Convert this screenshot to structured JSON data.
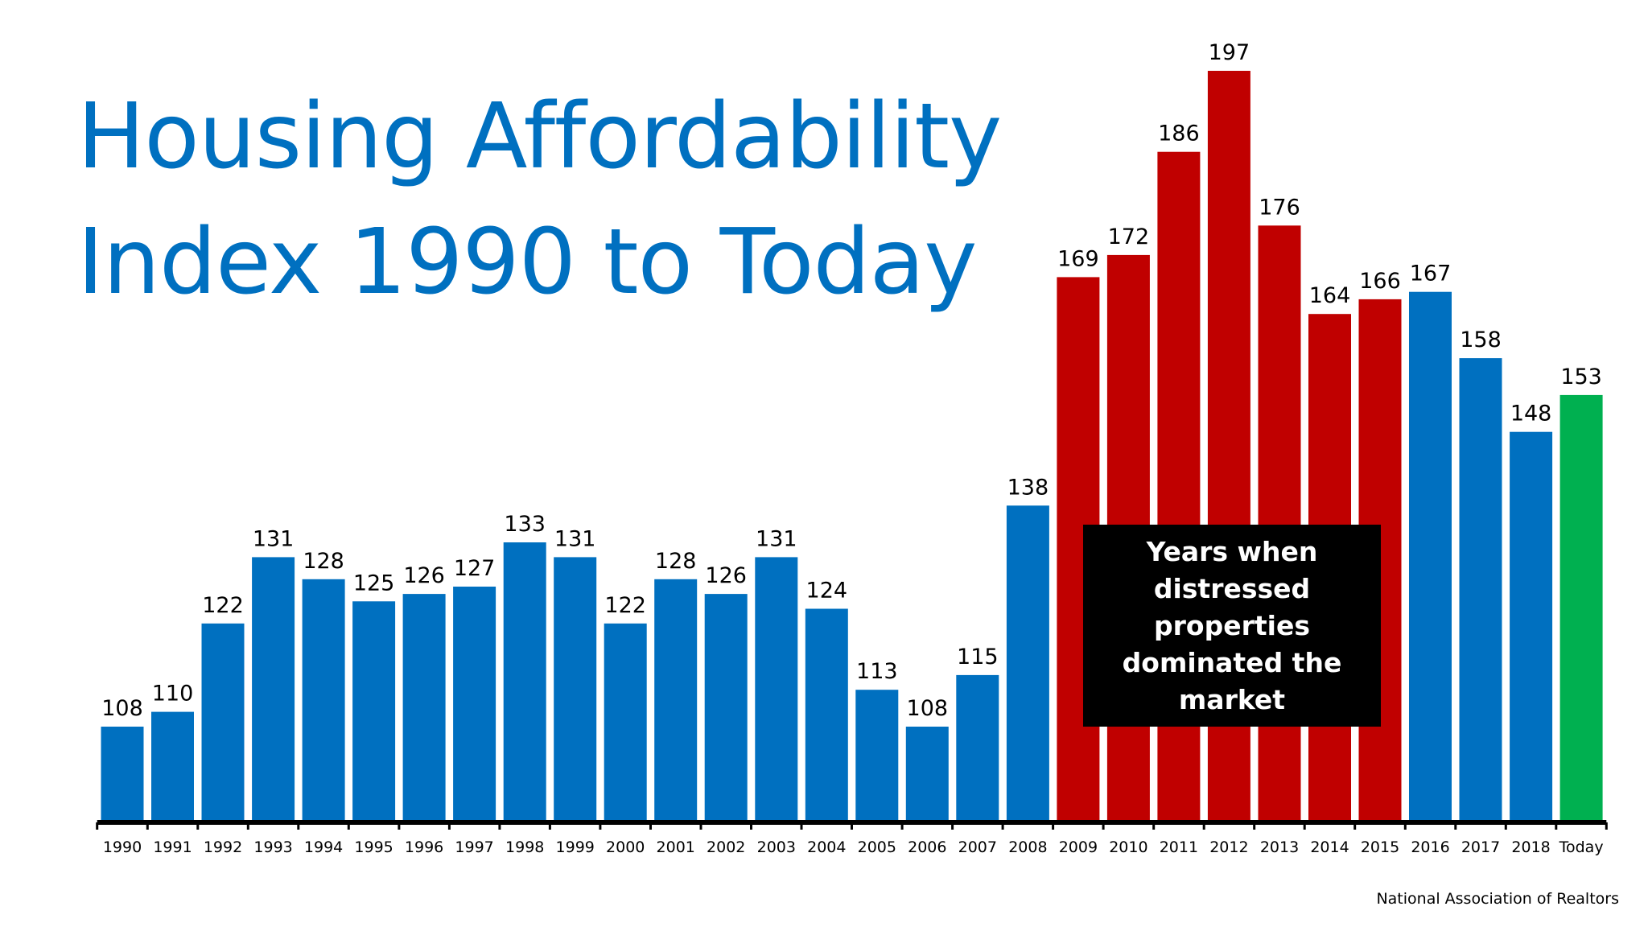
{
  "title_lines": [
    "Housing Affordability",
    "Index 1990 to Today"
  ],
  "source": "National Association of Realtors",
  "annotation": "Years when distressed properties dominated the market",
  "colors": {
    "normal": "#0070c0",
    "distressed": "#c00000",
    "today": "#00b050",
    "title": "#0070c0",
    "annotation_bg": "#000000",
    "axis": "#000000"
  },
  "chart_data": {
    "type": "bar",
    "title": "Housing Affordability Index 1990 to Today",
    "categories": [
      "1990",
      "1991",
      "1992",
      "1993",
      "1994",
      "1995",
      "1996",
      "1997",
      "1998",
      "1999",
      "2000",
      "2001",
      "2002",
      "2003",
      "2004",
      "2005",
      "2006",
      "2007",
      "2008",
      "2009",
      "2010",
      "2011",
      "2012",
      "2013",
      "2014",
      "2015",
      "2016",
      "2017",
      "2018",
      "Today"
    ],
    "values": [
      108,
      110,
      122,
      131,
      128,
      125,
      126,
      127,
      133,
      131,
      122,
      128,
      126,
      131,
      124,
      113,
      108,
      115,
      138,
      169,
      172,
      186,
      197,
      176,
      164,
      166,
      167,
      158,
      148,
      153
    ],
    "bar_groups": [
      "normal",
      "normal",
      "normal",
      "normal",
      "normal",
      "normal",
      "normal",
      "normal",
      "normal",
      "normal",
      "normal",
      "normal",
      "normal",
      "normal",
      "normal",
      "normal",
      "normal",
      "normal",
      "normal",
      "distressed",
      "distressed",
      "distressed",
      "distressed",
      "distressed",
      "distressed",
      "distressed",
      "normal",
      "normal",
      "normal",
      "today"
    ],
    "xlabel": "",
    "ylabel": "",
    "ylim": [
      95,
      200
    ],
    "grid": false,
    "legend": "none"
  }
}
